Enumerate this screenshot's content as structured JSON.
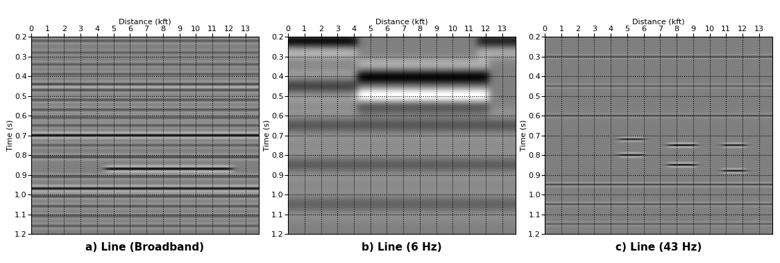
{
  "chart_data": [
    {
      "type": "seismic",
      "title": "a) Line (Broadband)",
      "x_label": "Distance (kft)",
      "y_label": "Time (s)",
      "xlim": [
        0,
        13.8
      ],
      "ylim": [
        1.2,
        0.2
      ],
      "xticks": [
        0,
        1,
        2,
        3,
        4,
        5,
        6,
        7,
        8,
        9,
        10,
        11,
        12,
        13
      ],
      "yticks": [
        0.2,
        0.3,
        0.4,
        0.5,
        0.6,
        0.7,
        0.8,
        0.9,
        1.0,
        1.1,
        1.2
      ],
      "grid": true,
      "color": "gray",
      "reflectors": [
        {
          "time": 0.22,
          "amplitude": 0.3
        },
        {
          "time": 0.28,
          "amplitude": 0.25
        },
        {
          "time": 0.34,
          "amplitude": 0.3
        },
        {
          "time": 0.39,
          "amplitude": 0.3
        },
        {
          "time": 0.44,
          "amplitude": 0.45
        },
        {
          "time": 0.47,
          "amplitude": 0.4
        },
        {
          "time": 0.52,
          "amplitude": 0.35
        },
        {
          "time": 0.57,
          "amplitude": 0.35
        },
        {
          "time": 0.61,
          "amplitude": 0.3
        },
        {
          "time": 0.65,
          "amplitude": 0.3
        },
        {
          "time": 0.7,
          "amplitude": 0.9
        },
        {
          "time": 0.75,
          "amplitude": 0.3
        },
        {
          "time": 0.81,
          "amplitude": 0.45
        },
        {
          "time": 0.87,
          "amplitude": 1.0,
          "x_range": [
            4.5,
            12.2
          ]
        },
        {
          "time": 0.91,
          "amplitude": 0.35
        },
        {
          "time": 0.97,
          "amplitude": 0.85
        },
        {
          "time": 1.01,
          "amplitude": 0.4
        },
        {
          "time": 1.06,
          "amplitude": 0.35
        },
        {
          "time": 1.11,
          "amplitude": 0.3
        },
        {
          "time": 1.16,
          "amplitude": 0.3
        }
      ]
    },
    {
      "type": "seismic",
      "title": "b) Line (6 Hz)",
      "x_label": "Distance (kft)",
      "y_label": "Time (s)",
      "xlim": [
        0,
        13.8
      ],
      "ylim": [
        1.2,
        0.2
      ],
      "xticks": [
        0,
        1,
        2,
        3,
        4,
        5,
        6,
        7,
        8,
        9,
        10,
        11,
        12,
        13
      ],
      "yticks": [
        0.2,
        0.3,
        0.4,
        0.5,
        0.6,
        0.7,
        0.8,
        0.9,
        1.0,
        1.1,
        1.2
      ],
      "grid": true,
      "color": "gray",
      "frequency": 6,
      "reflectors": [
        {
          "time": 0.22,
          "amplitude": 1.0,
          "x_range": [
            0,
            4.2
          ]
        },
        {
          "time": 0.22,
          "amplitude": 0.8,
          "x_range": [
            11.5,
            13.8
          ]
        },
        {
          "time": 0.4,
          "amplitude": 0.9,
          "x_range": [
            4.2,
            12.2
          ]
        },
        {
          "time": 0.5,
          "amplitude": -1.0,
          "x_range": [
            4.2,
            12.2
          ]
        },
        {
          "time": 0.45,
          "amplitude": 0.5,
          "x_range": [
            0,
            4.2
          ]
        },
        {
          "time": 0.65,
          "amplitude": 0.35
        },
        {
          "time": 0.85,
          "amplitude": 0.3
        },
        {
          "time": 1.05,
          "amplitude": 0.25
        }
      ]
    },
    {
      "type": "seismic",
      "title": "c) Line (43 Hz)",
      "x_label": "Distance (kft)",
      "y_label": "Time (s)",
      "xlim": [
        0,
        13.8
      ],
      "ylim": [
        1.2,
        0.2
      ],
      "xticks": [
        0,
        1,
        2,
        3,
        4,
        5,
        6,
        7,
        8,
        9,
        10,
        11,
        12,
        13
      ],
      "yticks": [
        0.2,
        0.3,
        0.4,
        0.5,
        0.6,
        0.7,
        0.8,
        0.9,
        1.0,
        1.1,
        1.2
      ],
      "grid": true,
      "color": "gray",
      "frequency": 43,
      "reflectors": [
        {
          "time": 0.3,
          "amplitude": 0.3
        },
        {
          "time": 0.45,
          "amplitude": 0.3
        },
        {
          "time": 0.6,
          "amplitude": 0.3
        },
        {
          "time": 0.72,
          "amplitude": 0.8,
          "x_range": [
            4.5,
            6.0
          ]
        },
        {
          "time": 0.8,
          "amplitude": 0.9,
          "x_range": [
            4.5,
            6.0
          ]
        },
        {
          "time": 0.75,
          "amplitude": 1.0,
          "x_range": [
            7.5,
            9.2
          ]
        },
        {
          "time": 0.85,
          "amplitude": 1.0,
          "x_range": [
            7.5,
            9.2
          ]
        },
        {
          "time": 0.75,
          "amplitude": 0.9,
          "x_range": [
            10.8,
            12.2
          ]
        },
        {
          "time": 0.88,
          "amplitude": 0.9,
          "x_range": [
            10.8,
            12.2
          ]
        },
        {
          "time": 0.95,
          "amplitude": 0.5
        },
        {
          "time": 1.05,
          "amplitude": 0.4
        },
        {
          "time": 1.15,
          "amplitude": 0.3
        }
      ]
    }
  ]
}
